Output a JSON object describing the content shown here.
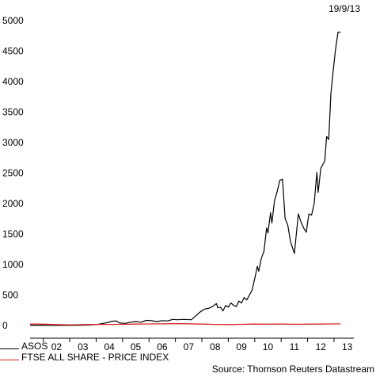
{
  "date_label": "19/9/13",
  "source": "Source: Thomson Reuters Datastream",
  "colors": {
    "asos": "#000000",
    "ftse": "#d62728"
  },
  "chart_data": {
    "type": "line",
    "ylim": [
      0,
      5000
    ],
    "yticks": [
      0,
      500,
      1000,
      1500,
      2000,
      2500,
      3000,
      3500,
      4000,
      4500,
      5000
    ],
    "xlim": [
      2001.5,
      2013.75
    ],
    "xticks": [
      {
        "label": "02",
        "x": 2002.5
      },
      {
        "label": "03",
        "x": 2003.5
      },
      {
        "label": "04",
        "x": 2004.5
      },
      {
        "label": "05",
        "x": 2005.5
      },
      {
        "label": "06",
        "x": 2006.5
      },
      {
        "label": "07",
        "x": 2007.5
      },
      {
        "label": "08",
        "x": 2008.5
      },
      {
        "label": "09",
        "x": 2009.5
      },
      {
        "label": "10",
        "x": 2010.5
      },
      {
        "label": "11",
        "x": 2011.5
      },
      {
        "label": "12",
        "x": 2012.5
      },
      {
        "label": "13",
        "x": 2013.5
      }
    ],
    "series": [
      {
        "name": "ASOS",
        "color": "#000000",
        "points": [
          [
            2001.5,
            5
          ],
          [
            2001.9,
            5
          ],
          [
            2002.3,
            3
          ],
          [
            2002.7,
            2
          ],
          [
            2003.0,
            2
          ],
          [
            2003.3,
            5
          ],
          [
            2003.7,
            8
          ],
          [
            2004.0,
            15
          ],
          [
            2004.2,
            30
          ],
          [
            2004.4,
            45
          ],
          [
            2004.6,
            70
          ],
          [
            2004.75,
            75
          ],
          [
            2004.9,
            40
          ],
          [
            2005.1,
            35
          ],
          [
            2005.3,
            55
          ],
          [
            2005.5,
            65
          ],
          [
            2005.7,
            55
          ],
          [
            2005.9,
            85
          ],
          [
            2006.1,
            80
          ],
          [
            2006.3,
            65
          ],
          [
            2006.5,
            80
          ],
          [
            2006.7,
            75
          ],
          [
            2006.9,
            100
          ],
          [
            2007.1,
            95
          ],
          [
            2007.3,
            100
          ],
          [
            2007.6,
            95
          ],
          [
            2007.75,
            150
          ],
          [
            2007.9,
            210
          ],
          [
            2008.1,
            270
          ],
          [
            2008.25,
            280
          ],
          [
            2008.4,
            310
          ],
          [
            2008.55,
            360
          ],
          [
            2008.6,
            290
          ],
          [
            2008.7,
            300
          ],
          [
            2008.8,
            240
          ],
          [
            2008.9,
            330
          ],
          [
            2009.0,
            300
          ],
          [
            2009.1,
            370
          ],
          [
            2009.2,
            330
          ],
          [
            2009.3,
            310
          ],
          [
            2009.4,
            400
          ],
          [
            2009.5,
            370
          ],
          [
            2009.6,
            460
          ],
          [
            2009.7,
            420
          ],
          [
            2009.8,
            500
          ],
          [
            2009.9,
            580
          ],
          [
            2010.0,
            770
          ],
          [
            2010.1,
            970
          ],
          [
            2010.15,
            890
          ],
          [
            2010.25,
            1100
          ],
          [
            2010.35,
            1220
          ],
          [
            2010.45,
            1600
          ],
          [
            2010.5,
            1520
          ],
          [
            2010.6,
            1850
          ],
          [
            2010.65,
            1680
          ],
          [
            2010.75,
            2050
          ],
          [
            2010.85,
            2200
          ],
          [
            2010.95,
            2380
          ],
          [
            2011.05,
            2400
          ],
          [
            2011.15,
            1750
          ],
          [
            2011.25,
            1650
          ],
          [
            2011.35,
            1380
          ],
          [
            2011.5,
            1180
          ],
          [
            2011.65,
            1830
          ],
          [
            2011.75,
            1700
          ],
          [
            2011.85,
            1600
          ],
          [
            2011.95,
            1530
          ],
          [
            2012.05,
            1830
          ],
          [
            2012.15,
            1810
          ],
          [
            2012.25,
            2000
          ],
          [
            2012.35,
            2510
          ],
          [
            2012.4,
            2180
          ],
          [
            2012.5,
            2580
          ],
          [
            2012.65,
            2700
          ],
          [
            2012.72,
            3100
          ],
          [
            2012.8,
            3050
          ],
          [
            2012.88,
            3800
          ],
          [
            2012.95,
            4100
          ],
          [
            2013.05,
            4500
          ],
          [
            2013.15,
            4810
          ],
          [
            2013.25,
            4810
          ]
        ]
      },
      {
        "name": "FTSE ALL SHARE - PRICE INDEX",
        "color": "#d62728",
        "points": [
          [
            2001.5,
            25
          ],
          [
            2002.0,
            22
          ],
          [
            2002.5,
            15
          ],
          [
            2003.0,
            12
          ],
          [
            2003.5,
            14
          ],
          [
            2004.0,
            17
          ],
          [
            2004.5,
            18
          ],
          [
            2005.0,
            20
          ],
          [
            2005.5,
            23
          ],
          [
            2006.0,
            26
          ],
          [
            2006.5,
            27
          ],
          [
            2007.0,
            30
          ],
          [
            2007.5,
            29
          ],
          [
            2008.0,
            24
          ],
          [
            2008.5,
            18
          ],
          [
            2009.0,
            16
          ],
          [
            2009.5,
            20
          ],
          [
            2010.0,
            23
          ],
          [
            2010.5,
            22
          ],
          [
            2011.0,
            24
          ],
          [
            2011.5,
            21
          ],
          [
            2012.0,
            22
          ],
          [
            2012.5,
            23
          ],
          [
            2013.0,
            26
          ],
          [
            2013.25,
            27
          ]
        ]
      }
    ]
  }
}
